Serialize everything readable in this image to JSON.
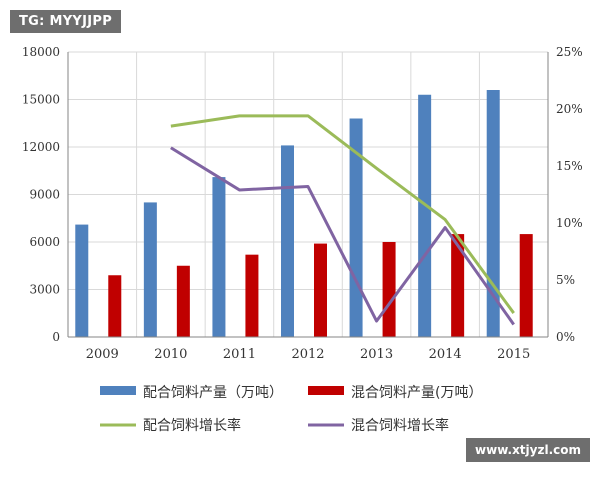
{
  "watermarks": {
    "top": "TG: MYYJJPP",
    "bottom": "www.xtjyzl.com"
  },
  "colors": {
    "bar_compound": "#4f81bd",
    "bar_mixed": "#c00000",
    "line_compound": "#9bbb59",
    "line_mixed": "#8064a2"
  },
  "chart_data": {
    "type": "bar",
    "categories": [
      "2009",
      "2010",
      "2011",
      "2012",
      "2013",
      "2014",
      "2015"
    ],
    "ylim": [
      0,
      18000
    ],
    "yticks": [
      "0",
      "3000",
      "6000",
      "9000",
      "12000",
      "15000",
      "18000"
    ],
    "y2lim": [
      0,
      25
    ],
    "y2ticks": [
      "0%",
      "5%",
      "10%",
      "15%",
      "20%",
      "25%"
    ],
    "grid": true,
    "legend_position": "bottom",
    "series": [
      {
        "name": "配合饲料产量（万吨）",
        "kind": "bar",
        "axis": "left",
        "values": [
          7100,
          8500,
          10100,
          12100,
          13800,
          15300,
          15600
        ]
      },
      {
        "name": "混合饲料产量(万吨）",
        "kind": "bar",
        "axis": "left",
        "values": [
          3900,
          4500,
          5200,
          5900,
          6000,
          6500,
          6500
        ]
      },
      {
        "name": "配合饲料增长率",
        "kind": "line",
        "axis": "right",
        "values": [
          null,
          18.5,
          19.4,
          19.4,
          14.8,
          10.3,
          2.1
        ]
      },
      {
        "name": "混合饲料增长率",
        "kind": "line",
        "axis": "right",
        "values": [
          null,
          16.6,
          12.9,
          13.2,
          1.4,
          9.6,
          1.1
        ]
      }
    ]
  }
}
